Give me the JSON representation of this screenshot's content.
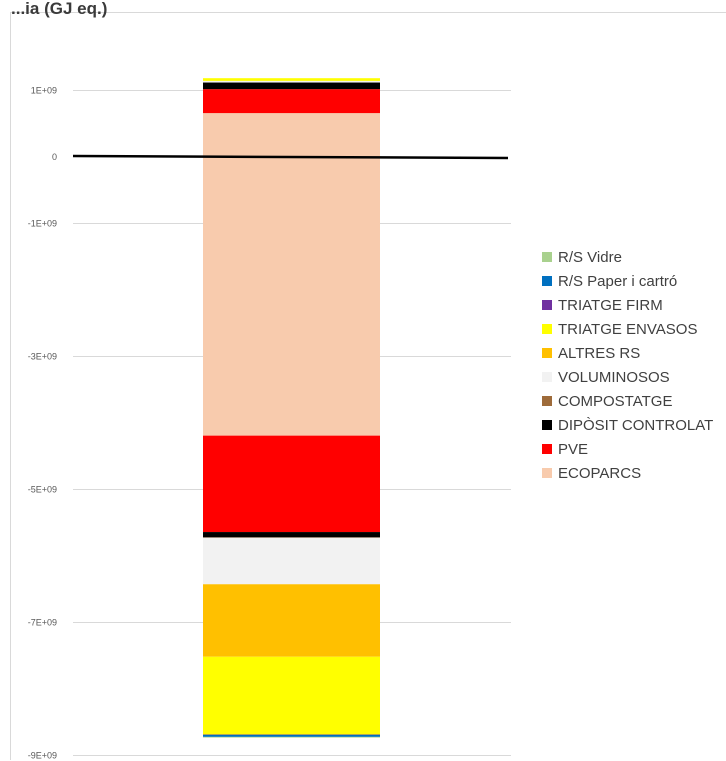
{
  "chart_data": {
    "type": "bar",
    "stacked": true,
    "title": "...ia (GJ eq.)",
    "xlabel": "",
    "ylabel": "",
    "ylim": [
      -9000000000,
      2000000000
    ],
    "y_tick_values": [
      1000000000,
      0,
      -1000000000,
      -3000000000,
      -5000000000,
      -7000000000,
      -9000000000
    ],
    "y_tick_labels": [
      "1E+09",
      "0",
      "-1E+09",
      "-3E+09",
      "-5E+09",
      "-7E+09",
      "-9E+09"
    ],
    "grid": true,
    "legend_position": "right",
    "categories": [
      ""
    ],
    "series": [
      {
        "name": "R/S Vidre",
        "color": "#a9d18e",
        "values": [
          -10000000
        ]
      },
      {
        "name": "R/S Paper i cartró",
        "color": "#0070c0",
        "values": [
          -30000000
        ]
      },
      {
        "name": "TRIATGE FIRM",
        "color": "#7030a0",
        "values": [
          -5000000
        ]
      },
      {
        "name": "TRIATGE ENVASOS",
        "color": "#ffff00",
        "values": [
          -1170000000
        ]
      },
      {
        "name": "ALTRES RS",
        "color": "#ffc000",
        "values": [
          -1090000000
        ]
      },
      {
        "name": "VOLUMINOSOS",
        "color": "#f2f2f2",
        "values": [
          -700000000
        ]
      },
      {
        "name": "COMPOSTATGE",
        "color": "#9e6b3a",
        "values": [
          -5000000
        ]
      },
      {
        "name": "DIPÒSIT CONTROLAT",
        "color": "#000000",
        "values": [
          -80000000
        ]
      },
      {
        "name": "PVE",
        "color": "#ff0000",
        "values": [
          -1450000000
        ]
      },
      {
        "name": "ECOPARCS",
        "color": "#f8cbad",
        "values": [
          -4190000000
        ]
      }
    ],
    "positive_stack": [
      {
        "name": "ECOPARCS",
        "value": 660000000
      },
      {
        "name": "PVE",
        "value": 360000000
      },
      {
        "name": "DIPÒSIT CONTROLAT",
        "value": 100000000
      },
      {
        "name": "VOLUMINOSOS",
        "value": 25000000
      },
      {
        "name": "TRIATGE ENVASOS",
        "value": 40000000
      }
    ],
    "legend_order": [
      "R/S Vidre",
      "R/S Paper i cartró",
      "TRIATGE FIRM",
      "TRIATGE ENVASOS",
      "ALTRES RS",
      "VOLUMINOSOS",
      "COMPOSTATGE",
      "DIPÒSIT CONTROLAT",
      "PVE",
      "ECOPARCS"
    ],
    "zero_line": true
  }
}
